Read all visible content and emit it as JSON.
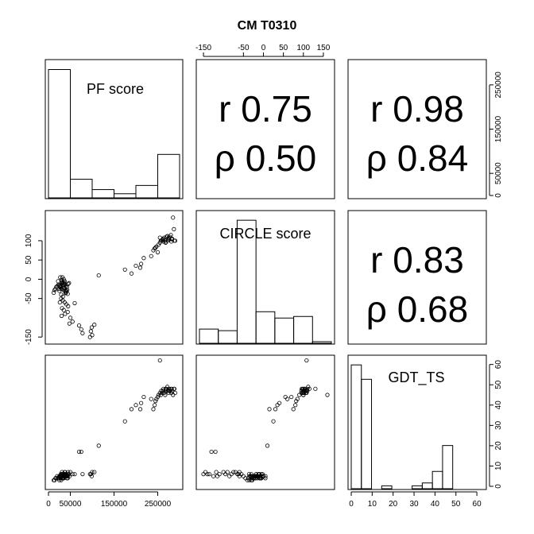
{
  "title": "CM T0310",
  "variables": [
    "PF score",
    "CIRCLE score",
    "GDT_TS"
  ],
  "correlations": [
    {
      "row": 0,
      "col": 1,
      "r": "r 0.75",
      "rho": "ρ 0.50"
    },
    {
      "row": 0,
      "col": 2,
      "r": "r 0.98",
      "rho": "ρ 0.84"
    },
    {
      "row": 1,
      "col": 2,
      "r": "r 0.83",
      "rho": "ρ 0.68"
    }
  ],
  "chart_data": {
    "type": "scatter",
    "title": "CM T0310",
    "ranges": {
      "pf": [
        0,
        300000
      ],
      "circle": [
        -160,
        170
      ],
      "gdt": [
        0,
        63
      ]
    },
    "axis_ticks": {
      "pf": [
        "0",
        "50000",
        "150000",
        "250000"
      ],
      "pf_values": [
        0,
        50000,
        150000,
        250000
      ],
      "pf_right": [
        "0",
        "50000",
        "150000",
        "250000"
      ],
      "circle_top": [
        "-150",
        "-50",
        "0",
        "50",
        "100",
        "150"
      ],
      "circle_top_values": [
        -150,
        -50,
        0,
        50,
        100,
        150
      ],
      "circle_left": [
        "-150",
        "-50",
        "0",
        "50",
        "100"
      ],
      "circle_left_values": [
        -150,
        -50,
        0,
        50,
        100
      ],
      "gdt": [
        "0",
        "10",
        "20",
        "30",
        "40",
        "50",
        "60"
      ],
      "gdt_values": [
        0,
        10,
        20,
        30,
        40,
        50,
        60
      ]
    },
    "histograms": {
      "pf": {
        "breaks": [
          0,
          50000,
          100000,
          150000,
          200000,
          250000,
          300000
        ],
        "counts": [
          62,
          9,
          4,
          2,
          6,
          21
        ]
      },
      "circle": {
        "breaks": [
          -200,
          -150,
          -100,
          -50,
          0,
          50,
          100,
          150
        ],
        "counts": [
          9,
          8,
          78,
          20,
          16,
          17,
          1
        ]
      },
      "gdt": {
        "breaks": [
          0,
          5,
          10,
          15,
          20,
          25,
          30,
          35,
          40,
          45,
          50,
          55,
          60,
          65
        ],
        "counts": [
          43,
          38,
          0,
          1,
          0,
          0,
          1,
          2,
          6,
          15,
          0,
          0,
          0,
          1
        ]
      }
    },
    "points": {
      "pf": [
        22000,
        25000,
        28000,
        30000,
        32000,
        35000,
        38000,
        40000,
        42000,
        45000,
        27000,
        33000,
        36000,
        39000,
        43000,
        24000,
        29000,
        31000,
        34000,
        37000,
        41000,
        44000,
        26000,
        30000,
        35000,
        38000,
        40000,
        32000,
        28000,
        36000,
        33000,
        25000,
        42000,
        47000,
        30000,
        34000,
        39000,
        27000,
        31000,
        36000,
        29000,
        33000,
        37000,
        41000,
        26000,
        31000,
        35000,
        44000,
        38000,
        30000,
        50000,
        55000,
        48000,
        60000,
        45000,
        70000,
        75000,
        78000,
        95000,
        100000,
        97000,
        99000,
        105000,
        12000,
        14000,
        16000,
        18000,
        20000,
        22000,
        115000,
        175000,
        190000,
        200000,
        210000,
        212000,
        218000,
        235000,
        240000,
        243000,
        245000,
        247000,
        250000,
        252000,
        255000,
        257000,
        258000,
        260000,
        262000,
        263000,
        265000,
        267000,
        268000,
        270000,
        272000,
        273000,
        275000,
        276000,
        278000,
        280000,
        281000,
        283000,
        285000,
        287000,
        290000,
        255000,
        262000,
        268000,
        275000,
        282000,
        288000
      ],
      "circle": [
        -5,
        -15,
        -20,
        -25,
        -10,
        0,
        -30,
        -35,
        -20,
        -12,
        5,
        -8,
        -22,
        -18,
        -28,
        -25,
        -40,
        -10,
        -15,
        -5,
        -30,
        -38,
        -20,
        -2,
        -24,
        -14,
        -32,
        5,
        -18,
        -8,
        -45,
        -30,
        -20,
        -10,
        -3,
        -28,
        -36,
        -16,
        -6,
        -12,
        -50,
        -55,
        -60,
        -65,
        -60,
        -75,
        -80,
        -85,
        -90,
        -95,
        -100,
        -110,
        -115,
        -62,
        -70,
        -120,
        -130,
        -140,
        -150,
        -145,
        -135,
        -125,
        -118,
        -35,
        -28,
        -25,
        -20,
        -18,
        -15,
        10,
        25,
        15,
        35,
        30,
        40,
        55,
        60,
        75,
        80,
        82,
        85,
        70,
        90,
        95,
        100,
        100,
        102,
        105,
        98,
        108,
        100,
        95,
        110,
        112,
        100,
        106,
        103,
        110,
        115,
        98,
        105,
        160,
        130,
        100,
        108,
        102,
        96,
        108,
        104,
        100
      ],
      "gdt": [
        4,
        5,
        4,
        5,
        6,
        5,
        6,
        5,
        4,
        6,
        5,
        4,
        5,
        6,
        5,
        4,
        3,
        4,
        5,
        6,
        5,
        4,
        5,
        6,
        4,
        5,
        5,
        4,
        6,
        5,
        4,
        3,
        5,
        6,
        5,
        4,
        6,
        5,
        4,
        6,
        5,
        6,
        7,
        6,
        5,
        7,
        6,
        5,
        7,
        6,
        7,
        6,
        5,
        6,
        7,
        17,
        17,
        6,
        6,
        7,
        6,
        5,
        7,
        3,
        3,
        4,
        4,
        5,
        4,
        20,
        32,
        38,
        40,
        38,
        41,
        44,
        43,
        38,
        40,
        42,
        43,
        44,
        45,
        46,
        45,
        47,
        46,
        47,
        48,
        46,
        45,
        47,
        48,
        49,
        47,
        46,
        48,
        47,
        48,
        46,
        47,
        45,
        48,
        46,
        62,
        47,
        48,
        47,
        48,
        48
      ]
    }
  }
}
